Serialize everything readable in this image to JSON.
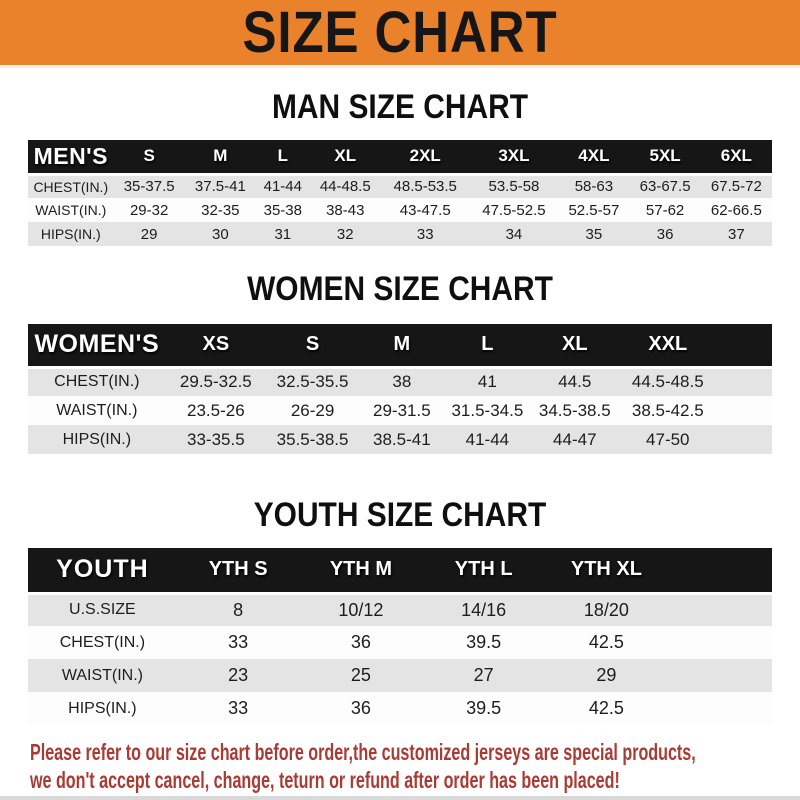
{
  "banner": {
    "title": "SIZE CHART"
  },
  "sections": [
    {
      "id": "men",
      "heading": "MAN SIZE CHART",
      "table": {
        "header": [
          "MEN'S",
          "S",
          "M",
          "L",
          "XL",
          "2XL",
          "3XL",
          "4XL",
          "5XL",
          "6XL"
        ],
        "rows": [
          [
            "CHEST(IN.)",
            "35-37.5",
            "37.5-41",
            "41-44",
            "44-48.5",
            "48.5-53.5",
            "53.5-58",
            "58-63",
            "63-67.5",
            "67.5-72"
          ],
          [
            "WAIST(IN.)",
            "29-32",
            "32-35",
            "35-38",
            "38-43",
            "43-47.5",
            "47.5-52.5",
            "52.5-57",
            "57-62",
            "62-66.5"
          ],
          [
            "HIPS(IN.)",
            "29",
            "30",
            "31",
            "32",
            "33",
            "34",
            "35",
            "36",
            "37"
          ]
        ]
      }
    },
    {
      "id": "women",
      "heading": "WOMEN SIZE CHART",
      "table": {
        "header": [
          "WOMEN'S",
          "XS",
          "S",
          "M",
          "L",
          "XL",
          "XXL"
        ],
        "rows": [
          [
            "CHEST(IN.)",
            "29.5-32.5",
            "32.5-35.5",
            "38",
            "41",
            "44.5",
            "44.5-48.5"
          ],
          [
            "WAIST(IN.)",
            "23.5-26",
            "26-29",
            "29-31.5",
            "31.5-34.5",
            "34.5-38.5",
            "38.5-42.5"
          ],
          [
            "HIPS(IN.)",
            "33-35.5",
            "35.5-38.5",
            "38.5-41",
            "41-44",
            "44-47",
            "47-50"
          ]
        ]
      }
    },
    {
      "id": "youth",
      "heading": "YOUTH SIZE CHART",
      "table": {
        "header": [
          "YOUTH",
          "YTH S",
          "YTH M",
          "YTH L",
          "YTH XL"
        ],
        "rows": [
          [
            "U.S.SIZE",
            "8",
            "10/12",
            "14/16",
            "18/20"
          ],
          [
            "CHEST(IN.)",
            "33",
            "36",
            "39.5",
            "42.5"
          ],
          [
            "WAIST(IN.)",
            "23",
            "25",
            "27",
            "29"
          ],
          [
            "HIPS(IN.)",
            "33",
            "36",
            "39.5",
            "42.5"
          ]
        ]
      }
    }
  ],
  "footer": {
    "line1": "Please refer to our size chart before order,the customized jerseys are special products,",
    "line2": "we don't accept cancel, change, teturn or refund after order has been placed!"
  },
  "colors": {
    "banner_bg": "#E9822B",
    "banner_text": "#161616",
    "table_header_bg": "#161616",
    "table_header_text": "#FFFFFF",
    "row_alt_bg": "#E4E4E4",
    "row_bg": "#FDFDFD",
    "footer_text": "#A93B34"
  }
}
